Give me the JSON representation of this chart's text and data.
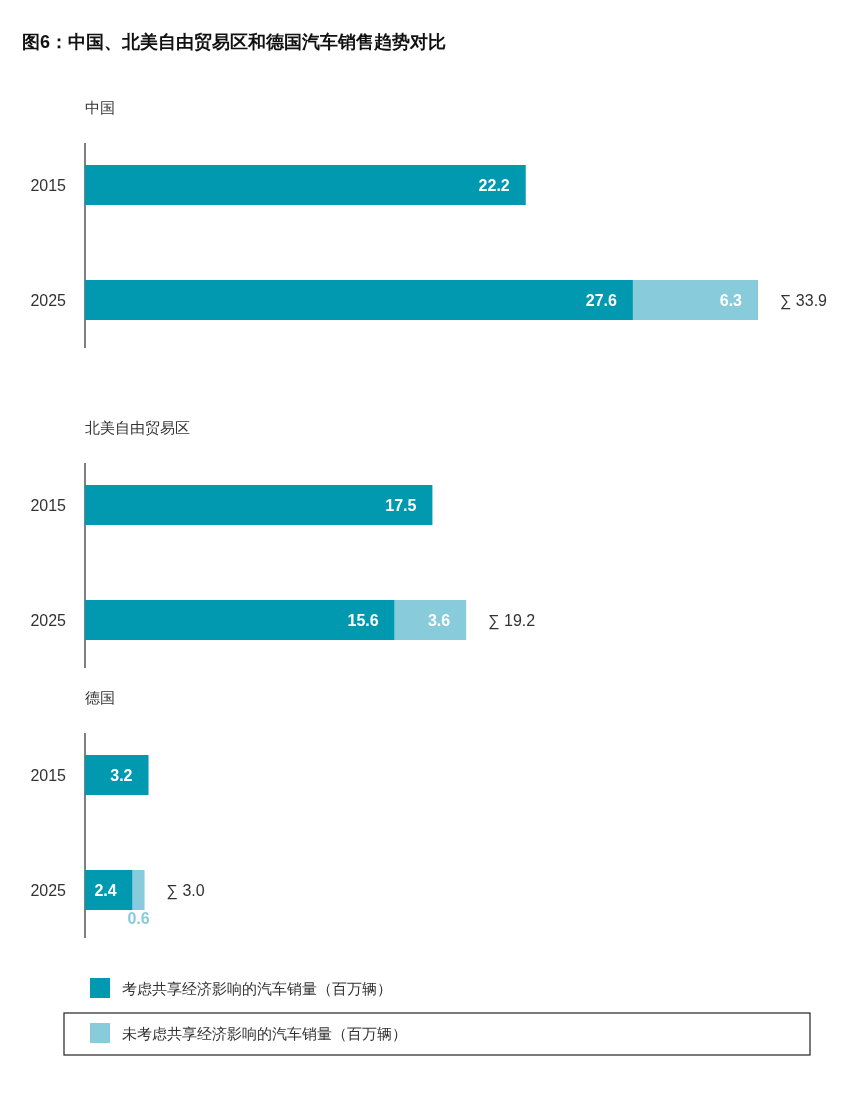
{
  "chart_data": [
    {
      "type": "bar",
      "orientation": "horizontal",
      "stacked": true,
      "title": "图6：中国、北美自由贸易区和德国汽车销售趋势对比",
      "subtitle": "中国",
      "categories": [
        "2015",
        "2025"
      ],
      "data_labels": true,
      "totals": [
        null,
        "∑ 33.9"
      ],
      "series": [
        {
          "color": "#0099b0",
          "values": [
            22.2,
            27.6
          ]
        },
        {
          "color": "#88cbdb",
          "values": [
            null,
            6.3
          ]
        }
      ]
    },
    {
      "type": "bar",
      "orientation": "horizontal",
      "stacked": true,
      "title": "北美自由贸易区",
      "categories": [
        "2015",
        "2025"
      ],
      "data_labels": true,
      "totals": [
        null,
        "∑ 19.2"
      ],
      "series": [
        {
          "color": "#0099b0",
          "values": [
            17.5,
            15.6
          ]
        },
        {
          "color": "#88cbdb",
          "values": [
            null,
            3.6
          ]
        }
      ]
    },
    {
      "type": "bar",
      "orientation": "horizontal",
      "stacked": true,
      "title": "德国",
      "categories": [
        "2015",
        "2025"
      ],
      "data_labels": true,
      "totals": [
        null,
        "∑ 3.0"
      ],
      "legend": "bottom",
      "series": [
        {
          "name": "考虑共享经济影响的汽车销量（百万辆）",
          "color": "#0099b0",
          "values": [
            3.2,
            2.4
          ]
        },
        {
          "name": "未考虑共享经济影响的汽车销量（百万辆）",
          "color": "#88cbdb",
          "values": [
            null,
            0.6
          ]
        }
      ]
    }
  ]
}
